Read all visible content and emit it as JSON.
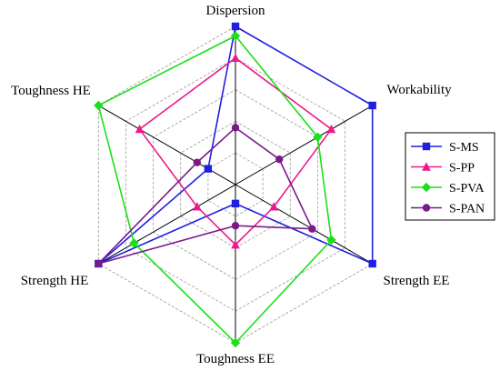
{
  "chart_data": {
    "type": "radar",
    "title": "",
    "axes": [
      "Dispersion",
      "Workability",
      "Strength EE",
      "Toughness EE",
      "Strength HE",
      "Toughness HE"
    ],
    "range": [
      0,
      5
    ],
    "grid_levels": 5,
    "grid": true,
    "legend_position": "right",
    "series": [
      {
        "name": "S-MS",
        "color": "#1f1fe0",
        "marker": "square",
        "values": [
          5.0,
          5.0,
          5.0,
          0.6,
          5.0,
          1.0
        ]
      },
      {
        "name": "S-PP",
        "color": "#ec1a8c",
        "marker": "triangle",
        "values": [
          4.0,
          3.5,
          1.4,
          1.9,
          1.4,
          3.5
        ]
      },
      {
        "name": "S-PVA",
        "color": "#19e019",
        "marker": "diamond",
        "values": [
          4.7,
          3.0,
          3.5,
          5.0,
          3.7,
          5.0
        ]
      },
      {
        "name": "S-PAN",
        "color": "#7a1a8a",
        "marker": "circle",
        "values": [
          1.8,
          1.6,
          2.8,
          1.3,
          5.0,
          1.4
        ]
      }
    ]
  }
}
